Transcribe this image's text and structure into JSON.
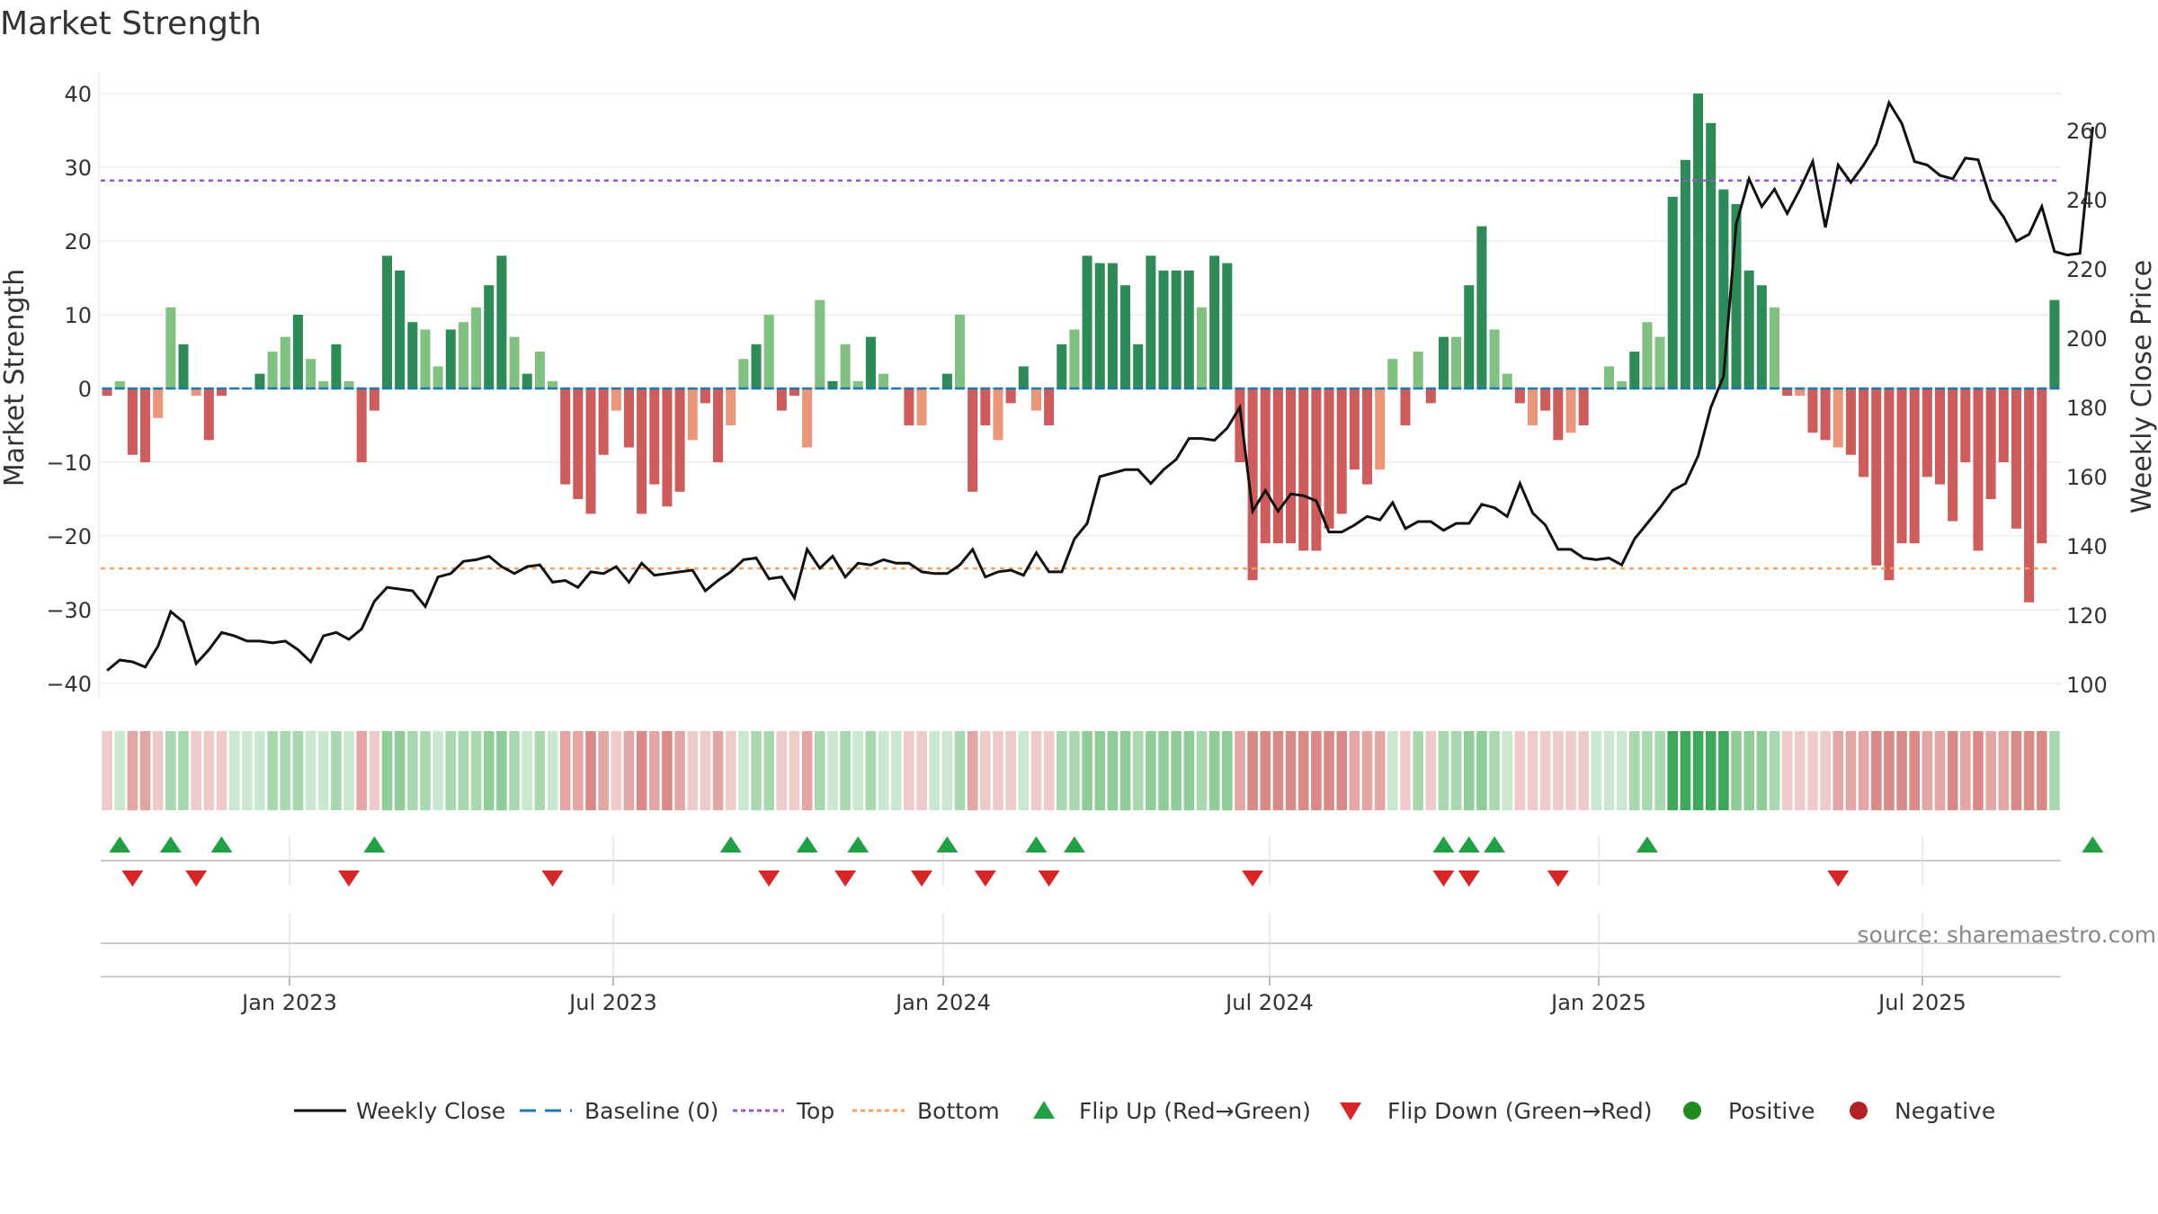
{
  "chart_data": {
    "type": "bar",
    "title": "Market Strength",
    "ylabel_left": "Market Strength",
    "ylabel_right": "Weekly Close Price",
    "ylim_left": [
      -40,
      40
    ],
    "yticks_left": [
      "40",
      "30",
      "20",
      "10",
      "0",
      "−10",
      "−20",
      "−30",
      "−40"
    ],
    "ylim_right": [
      100,
      260
    ],
    "yticks_right": [
      "260",
      "240",
      "220",
      "200",
      "180",
      "160",
      "140",
      "120",
      "100"
    ],
    "x_tick_labels": [
      "Jan 2023",
      "Jul 2023",
      "Jan 2024",
      "Jul 2024",
      "Jan 2025",
      "Jul 2025"
    ],
    "top_line": 28.2,
    "bottom_line": -24.4,
    "source": "source: sharemaestro.com",
    "legend": [
      "Weekly Close",
      "Baseline (0)",
      "Top",
      "Bottom",
      "Flip Up (Red→Green)",
      "Flip Down (Green→Red)",
      "Positive",
      "Negative"
    ],
    "colors": {
      "strong_pos": "#2e8b57",
      "weak_pos": "#80c080",
      "strong_neg": "#cd5c5c",
      "weak_neg": "#e9967a",
      "top": "#9955cc",
      "bottom": "#f0a060",
      "baseline": "#1f77b4",
      "flip_up": "#22a046",
      "flip_down": "#d62728",
      "positive": "#228b22",
      "negative": "#b22222"
    },
    "strength": [
      -1,
      1,
      -9,
      -10,
      -4,
      11,
      6,
      -1,
      -7,
      -1,
      0,
      0,
      2,
      5,
      7,
      10,
      4,
      1,
      6,
      1,
      -10,
      -3,
      18,
      16,
      9,
      8,
      3,
      8,
      9,
      11,
      14,
      18,
      7,
      2,
      5,
      1,
      -13,
      -15,
      -17,
      -9,
      -3,
      -8,
      -17,
      -13,
      -16,
      -14,
      -7,
      -2,
      -10,
      -5,
      4,
      6,
      10,
      -3,
      -1,
      -8,
      12,
      1,
      6,
      1,
      7,
      2,
      0,
      -5,
      -5,
      0,
      2,
      10,
      -14,
      -5,
      -7,
      -2,
      3,
      -3,
      -5,
      6,
      8,
      18,
      17,
      17,
      14,
      6,
      18,
      16,
      16,
      16,
      11,
      18,
      17,
      -10,
      -26,
      -21,
      -21,
      -21,
      -22,
      -22,
      -19,
      -17,
      -11,
      -13,
      -11,
      4,
      -5,
      5,
      -2,
      7,
      7,
      14,
      22,
      8,
      2,
      -2,
      -5,
      -3,
      -7,
      -6,
      -5,
      0,
      3,
      1,
      5,
      9,
      7,
      26,
      31,
      40,
      36,
      27,
      25,
      16,
      14,
      11,
      -1,
      -1,
      -6,
      -7,
      -8,
      -9,
      -12,
      -24,
      -26,
      -21,
      -21,
      -12,
      -13,
      -18,
      -10,
      -22,
      -15,
      -10,
      -19,
      -29,
      -21,
      12
    ],
    "close": [
      104,
      107,
      106.5,
      105,
      111,
      121,
      118,
      106,
      110,
      115,
      114,
      112.5,
      112.5,
      112,
      112.5,
      110,
      106.5,
      114,
      115,
      113,
      116,
      124,
      128,
      127.5,
      127,
      122.5,
      131,
      132,
      135.5,
      136,
      137,
      134,
      132,
      134,
      134.5,
      129.5,
      130,
      128,
      132.5,
      132,
      134,
      129.5,
      135,
      131.5,
      132,
      132.5,
      133,
      127,
      130,
      132.5,
      136,
      136.5,
      130.5,
      131,
      125,
      139,
      133.5,
      137,
      131,
      135,
      134.5,
      136,
      135,
      135,
      132.5,
      132,
      132,
      134.5,
      139,
      131,
      132.5,
      133,
      131.5,
      138,
      132.5,
      132.5,
      142,
      146.5,
      160,
      161,
      162,
      162,
      158,
      162,
      165,
      171,
      171,
      170.5,
      174,
      180,
      150,
      156,
      150,
      155,
      154.5,
      153,
      144,
      144,
      146,
      148.5,
      147.5,
      152.5,
      145,
      147,
      147,
      144.5,
      146.5,
      146.5,
      152,
      151,
      148.5,
      158,
      149.5,
      146,
      139,
      139,
      136.5,
      136,
      136.5,
      134.5,
      142,
      146.5,
      151,
      156,
      158,
      166,
      180,
      189,
      233,
      246,
      238,
      243,
      236,
      243,
      251,
      232,
      250,
      245,
      250,
      256,
      268,
      262,
      251,
      250,
      247,
      246,
      252,
      251.5,
      240,
      235,
      228,
      230,
      238,
      225,
      224,
      224.5,
      261
    ],
    "flips_up": [
      1,
      5,
      9,
      21,
      49,
      55,
      59,
      66,
      73,
      76,
      105,
      107,
      109,
      121,
      156
    ],
    "flips_down": [
      2,
      7,
      19,
      35,
      52,
      58,
      64,
      69,
      74,
      90,
      105,
      107,
      114,
      136
    ]
  }
}
